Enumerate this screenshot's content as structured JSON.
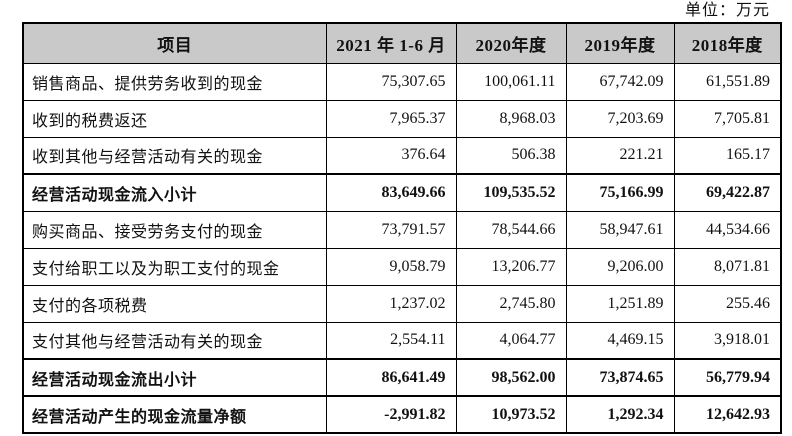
{
  "unit_label": "单位：万元",
  "colors": {
    "header_bg": "#c9c9c9",
    "border": "#000000",
    "text": "#111111",
    "page_bg": "#ffffff"
  },
  "table": {
    "columns": [
      "项目",
      "2021 年 1-6 月",
      "2020年度",
      "2019年度",
      "2018年度"
    ],
    "rows": [
      {
        "label": "销售商品、提供劳务收到的现金",
        "values": [
          "75,307.65",
          "100,061.11",
          "67,742.09",
          "61,551.89"
        ],
        "bold": false
      },
      {
        "label": "收到的税费返还",
        "values": [
          "7,965.37",
          "8,968.03",
          "7,203.69",
          "7,705.81"
        ],
        "bold": false
      },
      {
        "label": "收到其他与经营活动有关的现金",
        "values": [
          "376.64",
          "506.38",
          "221.21",
          "165.17"
        ],
        "bold": false
      },
      {
        "label": "经营活动现金流入小计",
        "values": [
          "83,649.66",
          "109,535.52",
          "75,166.99",
          "69,422.87"
        ],
        "bold": true
      },
      {
        "label": "购买商品、接受劳务支付的现金",
        "values": [
          "73,791.57",
          "78,544.66",
          "58,947.61",
          "44,534.66"
        ],
        "bold": false
      },
      {
        "label": "支付给职工以及为职工支付的现金",
        "values": [
          "9,058.79",
          "13,206.77",
          "9,206.00",
          "8,071.81"
        ],
        "bold": false
      },
      {
        "label": "支付的各项税费",
        "values": [
          "1,237.02",
          "2,745.80",
          "1,251.89",
          "255.46"
        ],
        "bold": false
      },
      {
        "label": "支付其他与经营活动有关的现金",
        "values": [
          "2,554.11",
          "4,064.77",
          "4,469.15",
          "3,918.01"
        ],
        "bold": false
      },
      {
        "label": "经营活动现金流出小计",
        "values": [
          "86,641.49",
          "98,562.00",
          "73,874.65",
          "56,779.94"
        ],
        "bold": true
      },
      {
        "label": "经营活动产生的现金流量净额",
        "values": [
          "-2,991.82",
          "10,973.52",
          "1,292.34",
          "12,642.93"
        ],
        "bold": true
      }
    ]
  }
}
